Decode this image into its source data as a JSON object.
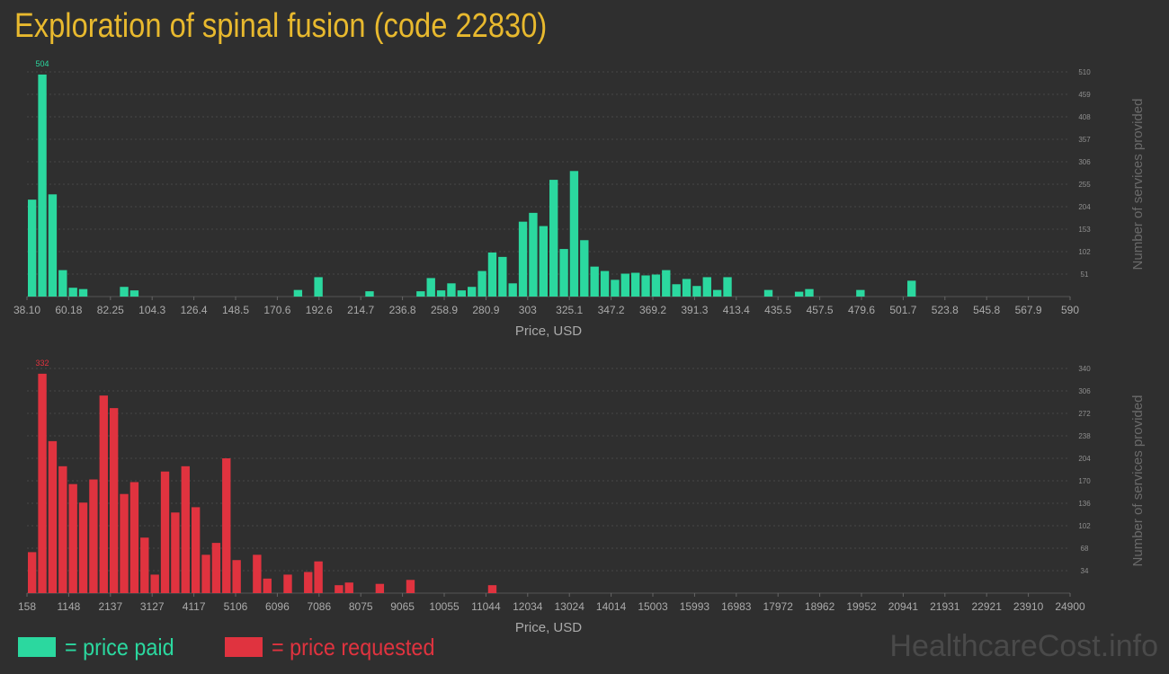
{
  "title": "Exploration of spinal fusion (code 22830)",
  "legend": {
    "paid": {
      "label": "= price paid",
      "color": "#2bd89f"
    },
    "requested": {
      "label": "= price requested",
      "color": "#e0333f"
    }
  },
  "watermark": "HealthcareCost.info",
  "chart_data": [
    {
      "type": "bar",
      "series": [
        {
          "name": "price paid",
          "values": [
            220,
            504,
            232,
            60,
            20,
            17,
            0,
            0,
            0,
            22,
            14,
            0,
            0,
            0,
            0,
            0,
            0,
            0,
            0,
            0,
            0,
            0,
            0,
            0,
            0,
            0,
            0,
            0,
            0,
            0,
            0,
            0,
            0,
            0,
            0,
            0,
            0,
            0,
            0,
            0,
            0,
            0,
            0,
            0,
            0,
            0,
            0,
            0,
            0,
            0,
            0,
            0,
            0,
            0,
            0,
            0,
            0,
            0,
            0,
            15,
            0,
            0,
            44,
            0,
            0,
            0,
            0,
            0,
            0,
            0,
            0,
            0,
            0,
            0,
            0,
            0,
            12,
            0,
            0,
            0,
            0,
            0,
            0,
            0,
            0,
            0,
            0,
            0,
            0,
            0,
            0,
            0,
            0,
            0,
            0,
            0,
            0,
            0,
            0,
            0,
            0,
            0,
            0,
            0,
            0,
            0,
            0,
            0,
            0,
            0,
            0,
            0,
            0,
            0,
            0,
            0,
            0,
            0,
            0,
            0,
            0,
            0,
            0,
            0,
            0,
            0,
            0,
            0,
            0,
            0,
            0,
            0,
            0,
            0,
            0,
            0,
            0,
            0,
            0,
            0,
            0,
            0,
            0,
            0,
            0,
            0,
            0,
            0,
            0,
            0,
            0,
            0,
            0,
            0,
            0,
            0,
            0,
            0,
            0,
            0,
            0,
            0,
            0,
            0,
            0,
            0,
            0,
            0,
            0,
            0,
            0,
            0,
            0,
            0,
            0,
            0,
            0,
            0,
            0,
            0,
            0,
            0,
            0,
            0,
            0,
            0,
            0,
            0,
            0,
            0,
            0,
            0,
            0,
            0,
            0,
            0,
            0,
            0
          ]
        }
      ],
      "bars": [
        220,
        504,
        232,
        60,
        20,
        17,
        0,
        0,
        0,
        22,
        14,
        0,
        0,
        0,
        0,
        0,
        0,
        0,
        0,
        0,
        0,
        0,
        0,
        0,
        0,
        0,
        15,
        0,
        44,
        0,
        0,
        0,
        0,
        12,
        0,
        0,
        0,
        0,
        12,
        42,
        14,
        30,
        14,
        22,
        58,
        100,
        90,
        30,
        170,
        190,
        160,
        265,
        108,
        285,
        128,
        68,
        58,
        38,
        52,
        54,
        48,
        50,
        60,
        28,
        40,
        24,
        44,
        15,
        44,
        0,
        0,
        0,
        15,
        0,
        0,
        11,
        17,
        0,
        0,
        0,
        0,
        15,
        0,
        0,
        0,
        0,
        36,
        0,
        0,
        0,
        0,
        0,
        0,
        0,
        0,
        0,
        0,
        0,
        0,
        0,
        0,
        0,
        0,
        0,
        0,
        0,
        0,
        0,
        0,
        0,
        0,
        0,
        0,
        0,
        0,
        0,
        0,
        0,
        0,
        0,
        0,
        0,
        0,
        0,
        0,
        0,
        0,
        0,
        0,
        0,
        0,
        0,
        0,
        0,
        0,
        0,
        0,
        0,
        0,
        0,
        0,
        0,
        0,
        0,
        0,
        0,
        0,
        0,
        0,
        0,
        0,
        0,
        0,
        0,
        0,
        0,
        0,
        0,
        0,
        0,
        0,
        0,
        0,
        0,
        0,
        0,
        0,
        0,
        0,
        0,
        0,
        0,
        0,
        0,
        0,
        0,
        0,
        0,
        0,
        0,
        0,
        0,
        0,
        0,
        0,
        0,
        0,
        0,
        0,
        0
      ],
      "x_ticks": [
        "38.10",
        "60.18",
        "82.25",
        "104.3",
        "126.4",
        "148.5",
        "170.6",
        "192.6",
        "214.7",
        "236.8",
        "258.9",
        "280.9",
        "303",
        "325.1",
        "347.2",
        "369.2",
        "391.3",
        "413.4",
        "435.5",
        "457.5",
        "479.6",
        "501.7",
        "523.8",
        "545.8",
        "567.9",
        "590"
      ],
      "y_ticks": [
        "51",
        "102",
        "153",
        "204",
        "255",
        "306",
        "357",
        "408",
        "459",
        "510"
      ],
      "ylim": [
        0,
        510
      ],
      "peak_label": "504",
      "xlabel": "Price, USD",
      "ylabel": "Number of services provided",
      "grid": true
    },
    {
      "type": "bar",
      "series": [
        {
          "name": "price requested",
          "values": []
        }
      ],
      "bars": [
        62,
        332,
        230,
        192,
        165,
        137,
        172,
        299,
        280,
        150,
        168,
        84,
        28,
        184,
        122,
        192,
        130,
        58,
        76,
        204,
        50,
        0,
        58,
        22,
        0,
        28,
        0,
        32,
        48,
        0,
        12,
        16,
        0,
        0,
        14,
        0,
        0,
        20,
        0,
        0,
        0,
        0,
        0,
        0,
        0,
        12,
        0,
        0,
        0,
        0,
        0,
        0,
        0,
        0,
        0,
        0,
        0,
        0,
        0,
        0,
        0,
        0,
        0,
        0,
        0,
        0,
        0,
        0,
        0,
        0,
        0,
        0,
        0,
        0,
        0,
        0,
        0,
        0,
        0,
        0,
        0,
        0,
        0,
        0,
        0,
        0,
        0,
        0,
        0,
        0,
        0,
        0,
        0,
        0,
        0,
        0,
        0,
        0,
        0,
        0,
        0,
        0,
        0,
        0,
        0,
        0,
        0,
        0,
        0,
        0,
        0,
        0,
        0,
        0,
        0,
        0,
        0,
        0,
        0,
        0,
        0,
        0,
        0,
        0,
        0,
        0,
        0,
        0,
        0,
        0,
        0,
        0,
        0,
        0,
        0,
        0,
        0,
        0,
        0,
        0,
        0,
        0,
        0,
        0,
        0,
        0,
        0,
        0,
        0,
        0,
        0,
        0,
        0,
        0,
        0,
        0,
        0,
        0,
        0,
        0,
        0,
        0,
        0,
        0,
        0,
        0,
        0,
        0,
        0,
        0,
        0,
        0,
        0,
        0,
        0,
        0,
        0,
        0,
        0,
        0,
        0,
        0,
        0,
        0,
        0,
        0,
        0,
        0,
        0,
        0
      ],
      "x_ticks": [
        "158",
        "1148",
        "2137",
        "3127",
        "4117",
        "5106",
        "6096",
        "7086",
        "8075",
        "9065",
        "10055",
        "11044",
        "12034",
        "13024",
        "14014",
        "15003",
        "15993",
        "16983",
        "17972",
        "18962",
        "19952",
        "20941",
        "21931",
        "22921",
        "23910",
        "24900"
      ],
      "y_ticks": [
        "34",
        "68",
        "102",
        "136",
        "170",
        "204",
        "238",
        "272",
        "306",
        "340"
      ],
      "ylim": [
        0,
        340
      ],
      "peak_label": "332",
      "xlabel": "Price, USD",
      "ylabel": "Number of services provided",
      "grid": true
    }
  ]
}
